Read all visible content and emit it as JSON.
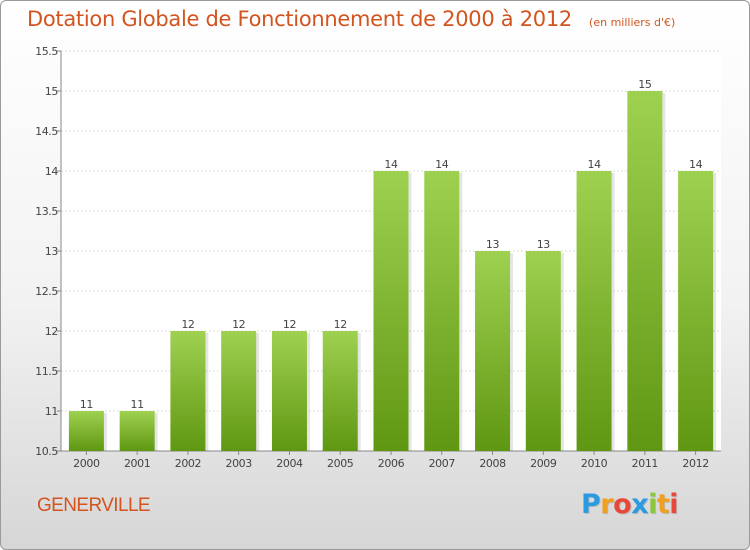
{
  "chart_data": {
    "type": "bar",
    "title": "Dotation Globale de Fonctionnement de 2000 à 2012",
    "subtitle": "(en milliers d'€)",
    "categories": [
      "2000",
      "2001",
      "2002",
      "2003",
      "2004",
      "2005",
      "2006",
      "2007",
      "2008",
      "2009",
      "2010",
      "2011",
      "2012"
    ],
    "values": [
      11,
      11,
      12,
      12,
      12,
      12,
      14,
      14,
      13,
      13,
      14,
      15,
      14
    ],
    "data_labels": [
      "11",
      "11",
      "12",
      "12",
      "12",
      "12",
      "14",
      "14",
      "13",
      "13",
      "14",
      "15",
      "14"
    ],
    "ylim": [
      10.5,
      15.5
    ],
    "yticks": [
      10.5,
      11,
      11.5,
      12,
      12.5,
      13,
      13.5,
      14,
      14.5,
      15,
      15.5
    ],
    "ytick_labels": [
      "10.5",
      "11",
      "11.5",
      "12",
      "12.5",
      "13",
      "13.5",
      "14",
      "14.5",
      "15",
      "15.5"
    ],
    "grid": true,
    "colors": {
      "bar_light": "#9fd150",
      "bar_dark": "#5f9712",
      "title": "#d2541f"
    }
  },
  "commune": "GENERVILLE",
  "logo": {
    "letters": [
      "P",
      "r",
      "o",
      "x",
      "i",
      "t",
      "i"
    ],
    "colors": [
      "#2a9be0",
      "#f0a020",
      "#e8473a",
      "#2a9be0",
      "#8cc63f",
      "#f0a020",
      "#e8473a"
    ]
  }
}
